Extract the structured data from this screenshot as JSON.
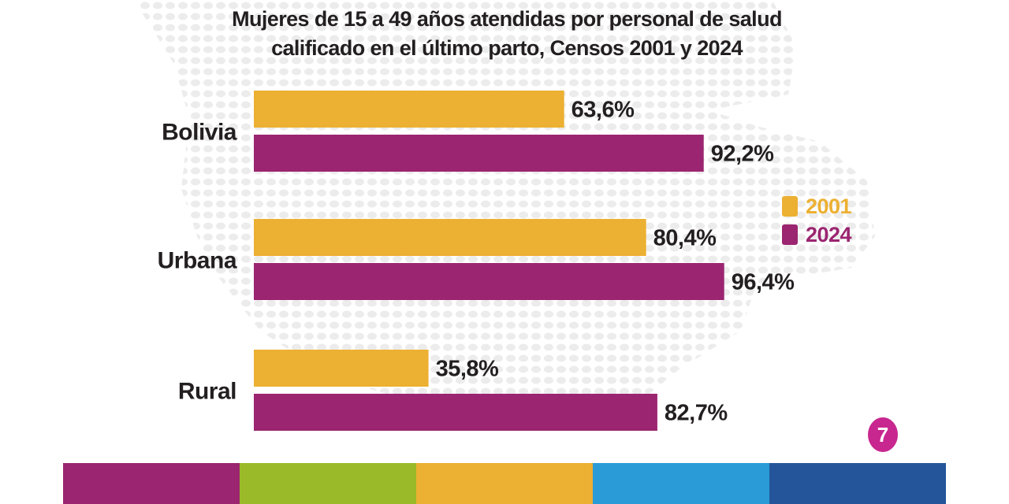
{
  "title_line1": "Mujeres de 15 a 49 años atendidas por personal de salud",
  "title_line2": "calificado en el último parto, Censos 2001 y 2024",
  "legend": [
    {
      "label": "2001",
      "color": "#ecb032"
    },
    {
      "label": "2024",
      "color": "#9b2570"
    }
  ],
  "page_number": "7",
  "footer_stripes": [
    "#9b2570",
    "#9bba2a",
    "#ecb032",
    "#2a9bd6",
    "#24559a"
  ],
  "chart_data": {
    "type": "bar",
    "orientation": "horizontal",
    "title": "Mujeres de 15 a 49 años atendidas por personal de salud calificado en el último parto, Censos 2001 y 2024",
    "categories": [
      "Bolivia",
      "Urbana",
      "Rural"
    ],
    "series": [
      {
        "name": "2001",
        "color": "#ecb032",
        "values": [
          63.6,
          80.4,
          35.8
        ],
        "labels": [
          "63,6%",
          "80,4%",
          "35,8%"
        ]
      },
      {
        "name": "2024",
        "color": "#9b2570",
        "values": [
          92.2,
          96.4,
          82.7
        ],
        "labels": [
          "92,2%",
          "96,4%",
          "82,7%"
        ]
      }
    ],
    "xlim": [
      0,
      100
    ],
    "xlabel": "",
    "ylabel": "",
    "grid": false,
    "legend_position": "right"
  }
}
